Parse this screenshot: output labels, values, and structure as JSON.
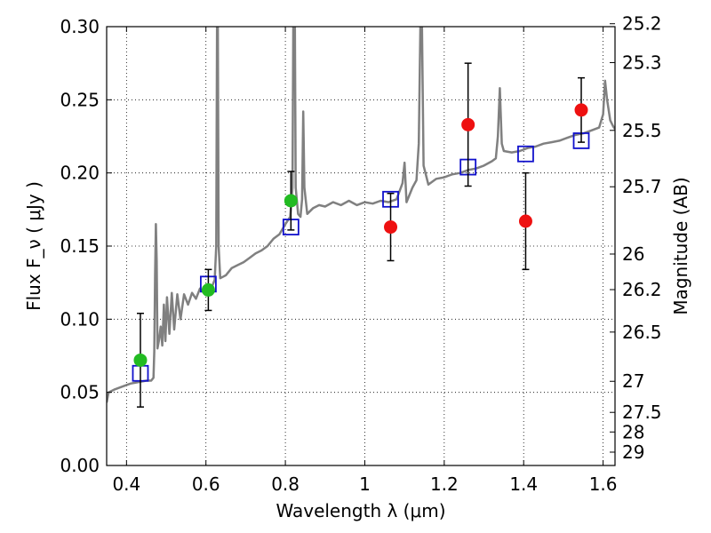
{
  "chart_data": {
    "type": "scatter",
    "xlabel": "Wavelength  λ (μm)",
    "ylabel": "Flux  F_ν  ( μJy )",
    "y2label": "Magnitude (AB)",
    "xlim": [
      0.35,
      1.63
    ],
    "ylim": [
      0.0,
      0.3
    ],
    "grid": true,
    "x_ticks": [
      0.4,
      0.6,
      0.8,
      1.0,
      1.2,
      1.4,
      1.6
    ],
    "x_tick_labels": [
      "0.4",
      "0.6",
      "0.8",
      "1",
      "1.2",
      "1.4",
      "1.6"
    ],
    "y_ticks": [
      0.0,
      0.05,
      0.1,
      0.15,
      0.2,
      0.25,
      0.3
    ],
    "y_tick_labels": [
      "0.00",
      "0.05",
      "0.10",
      "0.15",
      "0.20",
      "0.25",
      "0.30"
    ],
    "magnitude_ticks": [
      "25.2",
      "25.3",
      "25.5",
      "25.7",
      "26",
      "26.2",
      "26.5",
      "27",
      "27.5",
      "28",
      "29"
    ],
    "colors": {
      "spectrum": "#808080",
      "green_points": "#22bb22",
      "red_points": "#ee1111",
      "model_squares": "#1111cc",
      "error_bars": "#000000"
    },
    "series": [
      {
        "marker": "circle-green",
        "points": [
          {
            "x": 0.435,
            "y": 0.072,
            "err": 0.032
          },
          {
            "x": 0.606,
            "y": 0.12,
            "err": 0.014
          },
          {
            "x": 0.814,
            "y": 0.181,
            "err": 0.02
          }
        ]
      },
      {
        "marker": "circle-red",
        "points": [
          {
            "x": 1.065,
            "y": 0.163,
            "err": 0.023
          },
          {
            "x": 1.26,
            "y": 0.233,
            "err": 0.042
          },
          {
            "x": 1.405,
            "y": 0.167,
            "err": 0.033
          },
          {
            "x": 1.545,
            "y": 0.243,
            "err": 0.022
          }
        ]
      },
      {
        "marker": "open-square-blue",
        "points": [
          {
            "x": 0.435,
            "y": 0.063
          },
          {
            "x": 0.606,
            "y": 0.124
          },
          {
            "x": 0.814,
            "y": 0.163
          },
          {
            "x": 1.065,
            "y": 0.182
          },
          {
            "x": 1.26,
            "y": 0.204
          },
          {
            "x": 1.405,
            "y": 0.213
          },
          {
            "x": 1.545,
            "y": 0.222
          }
        ]
      },
      {
        "marker": "line-gray",
        "points": [
          [
            0.35,
            0.043
          ],
          [
            0.355,
            0.05
          ],
          [
            0.37,
            0.052
          ],
          [
            0.39,
            0.054
          ],
          [
            0.41,
            0.056
          ],
          [
            0.43,
            0.057
          ],
          [
            0.45,
            0.058
          ],
          [
            0.462,
            0.058
          ],
          [
            0.468,
            0.06
          ],
          [
            0.47,
            0.078
          ],
          [
            0.472,
            0.13
          ],
          [
            0.474,
            0.165
          ],
          [
            0.476,
            0.14
          ],
          [
            0.478,
            0.08
          ],
          [
            0.482,
            0.086
          ],
          [
            0.486,
            0.095
          ],
          [
            0.49,
            0.082
          ],
          [
            0.494,
            0.11
          ],
          [
            0.498,
            0.085
          ],
          [
            0.502,
            0.115
          ],
          [
            0.508,
            0.09
          ],
          [
            0.514,
            0.118
          ],
          [
            0.52,
            0.093
          ],
          [
            0.528,
            0.117
          ],
          [
            0.536,
            0.1
          ],
          [
            0.545,
            0.117
          ],
          [
            0.555,
            0.11
          ],
          [
            0.565,
            0.118
          ],
          [
            0.575,
            0.114
          ],
          [
            0.585,
            0.121
          ],
          [
            0.595,
            0.118
          ],
          [
            0.605,
            0.123
          ],
          [
            0.615,
            0.122
          ],
          [
            0.622,
            0.127
          ],
          [
            0.626,
            0.15
          ],
          [
            0.628,
            0.3
          ],
          [
            0.63,
            0.3
          ],
          [
            0.632,
            0.15
          ],
          [
            0.636,
            0.128
          ],
          [
            0.65,
            0.13
          ],
          [
            0.665,
            0.135
          ],
          [
            0.68,
            0.137
          ],
          [
            0.695,
            0.139
          ],
          [
            0.71,
            0.142
          ],
          [
            0.725,
            0.145
          ],
          [
            0.74,
            0.147
          ],
          [
            0.755,
            0.15
          ],
          [
            0.77,
            0.155
          ],
          [
            0.785,
            0.158
          ],
          [
            0.8,
            0.165
          ],
          [
            0.812,
            0.17
          ],
          [
            0.818,
            0.19
          ],
          [
            0.82,
            0.3
          ],
          [
            0.824,
            0.3
          ],
          [
            0.826,
            0.19
          ],
          [
            0.832,
            0.172
          ],
          [
            0.838,
            0.17
          ],
          [
            0.842,
            0.182
          ],
          [
            0.845,
            0.242
          ],
          [
            0.848,
            0.19
          ],
          [
            0.855,
            0.172
          ],
          [
            0.87,
            0.176
          ],
          [
            0.885,
            0.178
          ],
          [
            0.9,
            0.177
          ],
          [
            0.92,
            0.18
          ],
          [
            0.94,
            0.178
          ],
          [
            0.96,
            0.181
          ],
          [
            0.98,
            0.178
          ],
          [
            1.0,
            0.18
          ],
          [
            1.02,
            0.179
          ],
          [
            1.04,
            0.181
          ],
          [
            1.06,
            0.18
          ],
          [
            1.08,
            0.182
          ],
          [
            1.095,
            0.193
          ],
          [
            1.1,
            0.207
          ],
          [
            1.105,
            0.18
          ],
          [
            1.12,
            0.19
          ],
          [
            1.13,
            0.195
          ],
          [
            1.136,
            0.22
          ],
          [
            1.14,
            0.3
          ],
          [
            1.144,
            0.3
          ],
          [
            1.148,
            0.205
          ],
          [
            1.16,
            0.192
          ],
          [
            1.18,
            0.196
          ],
          [
            1.2,
            0.197
          ],
          [
            1.22,
            0.199
          ],
          [
            1.24,
            0.2
          ],
          [
            1.26,
            0.202
          ],
          [
            1.28,
            0.203
          ],
          [
            1.3,
            0.205
          ],
          [
            1.32,
            0.208
          ],
          [
            1.33,
            0.21
          ],
          [
            1.335,
            0.225
          ],
          [
            1.34,
            0.258
          ],
          [
            1.345,
            0.22
          ],
          [
            1.35,
            0.215
          ],
          [
            1.37,
            0.214
          ],
          [
            1.39,
            0.215
          ],
          [
            1.41,
            0.217
          ],
          [
            1.43,
            0.218
          ],
          [
            1.45,
            0.22
          ],
          [
            1.47,
            0.221
          ],
          [
            1.49,
            0.222
          ],
          [
            1.51,
            0.224
          ],
          [
            1.53,
            0.226
          ],
          [
            1.55,
            0.227
          ],
          [
            1.57,
            0.229
          ],
          [
            1.59,
            0.231
          ],
          [
            1.6,
            0.24
          ],
          [
            1.605,
            0.263
          ],
          [
            1.61,
            0.25
          ],
          [
            1.618,
            0.236
          ],
          [
            1.625,
            0.232
          ],
          [
            1.63,
            0.23
          ]
        ]
      }
    ]
  }
}
